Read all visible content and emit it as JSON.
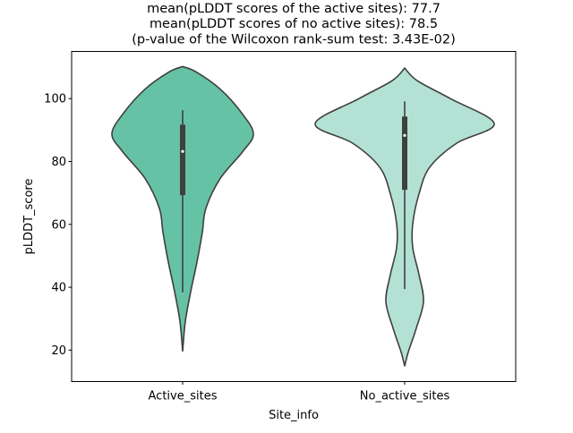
{
  "chart_data": {
    "type": "violin",
    "title": [
      "mean(pLDDT scores of the active sites): 77.7",
      "mean(pLDDT scores of no active sites): 78.5",
      "(p-value of the Wilcoxon rank-sum test: 3.43E-02)"
    ],
    "xlabel": "Site_info",
    "ylabel": "pLDDT_score",
    "ylim": [
      10,
      115
    ],
    "yticks": [
      20,
      40,
      60,
      80,
      100
    ],
    "categories": [
      "Active_sites",
      "No_active_sites"
    ],
    "series": [
      {
        "name": "Active_sites",
        "color": "#66c2a5",
        "whisker": [
          38.4,
          96.3
        ],
        "box": [
          69.3,
          91.7
        ],
        "median": 83.2,
        "density_profile": [
          [
            110.2,
            0
          ],
          [
            108.5,
            0.15
          ],
          [
            103.0,
            0.42
          ],
          [
            95.4,
            0.66
          ],
          [
            88.8,
            0.79
          ],
          [
            83.1,
            0.67
          ],
          [
            74.6,
            0.42
          ],
          [
            65.1,
            0.26
          ],
          [
            57.5,
            0.22
          ],
          [
            48.0,
            0.16
          ],
          [
            38.6,
            0.09
          ],
          [
            29.1,
            0.03
          ],
          [
            19.6,
            0
          ]
        ]
      },
      {
        "name": "No_active_sites",
        "color": "#b3e2d4",
        "whisker": [
          39.4,
          99.1
        ],
        "box": [
          71.0,
          94.3
        ],
        "median": 88.3,
        "density_profile": [
          [
            109.7,
            0
          ],
          [
            105.7,
            0.14
          ],
          [
            100.0,
            0.51
          ],
          [
            92.0,
            1.0
          ],
          [
            85.8,
            0.58
          ],
          [
            78.2,
            0.28
          ],
          [
            69.7,
            0.16
          ],
          [
            60.2,
            0.09
          ],
          [
            52.6,
            0.09
          ],
          [
            44.0,
            0.16
          ],
          [
            35.5,
            0.21
          ],
          [
            27.0,
            0.13
          ],
          [
            19.4,
            0.04
          ],
          [
            14.9,
            0
          ]
        ]
      }
    ]
  }
}
